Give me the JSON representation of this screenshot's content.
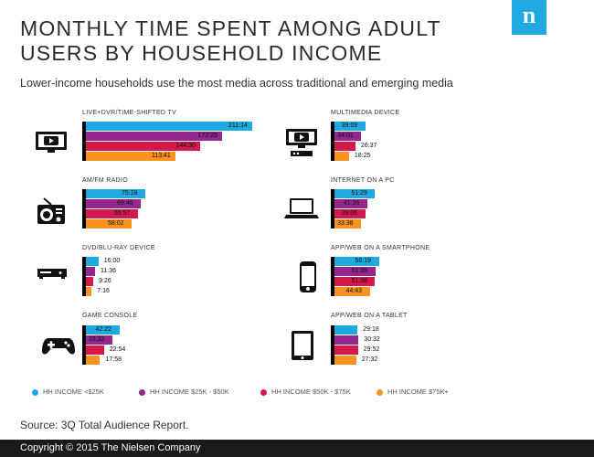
{
  "header": {
    "title": "MONTHLY TIME SPENT AMONG ADULT USERS BY HOUSEHOLD INCOME",
    "subtitle": "Lower-income households use the most media across traditional and emerging media",
    "logo_text": "n"
  },
  "colors": {
    "series": [
      "#1fa9e1",
      "#93278f",
      "#d4184b",
      "#f7931e"
    ],
    "logo": "#1fa9e1",
    "footer": "#1a1a1a"
  },
  "legend": [
    "HH INCOME <$25K",
    "HH INCOME $25K - $50K",
    "HH INCOME $50K - $75K",
    "HH INCOME $75K+"
  ],
  "chart_data": [
    {
      "type": "bar",
      "title": "LIVE+DVR/TIME-SHIFTED TV",
      "icon": "tv-icon",
      "series_names": [
        "HH INCOME <$25K",
        "HH INCOME $25K - $50K",
        "HH INCOME $50K - $75K",
        "HH INCOME $75K+"
      ],
      "labels": [
        "211:14",
        "172:25",
        "144:30",
        "113:41"
      ],
      "values": [
        211.23,
        172.42,
        144.5,
        113.68
      ],
      "units": "hours:minutes"
    },
    {
      "type": "bar",
      "title": "MULTIMEDIA DEVICE",
      "icon": "multimedia-device-icon",
      "series_names": [
        "HH INCOME <$25K",
        "HH INCOME $25K - $50K",
        "HH INCOME $50K - $75K",
        "HH INCOME $75K+"
      ],
      "labels": [
        "39:09",
        "34:01",
        "26:37",
        "18:25"
      ],
      "values": [
        39.15,
        34.02,
        26.62,
        18.42
      ],
      "units": "hours:minutes"
    },
    {
      "type": "bar",
      "title": "AM/FM RADIO",
      "icon": "radio-icon",
      "series_names": [
        "HH INCOME <$25K",
        "HH INCOME $25K - $50K",
        "HH INCOME $50K - $75K",
        "HH INCOME $75K+"
      ],
      "labels": [
        "75:28",
        "69:46",
        "65:57",
        "58:02"
      ],
      "values": [
        75.47,
        69.77,
        65.95,
        58.03
      ],
      "units": "hours:minutes"
    },
    {
      "type": "bar",
      "title": "INTERNET ON A PC",
      "icon": "laptop-icon",
      "series_names": [
        "HH INCOME <$25K",
        "HH INCOME $25K - $50K",
        "HH INCOME $50K - $75K",
        "HH INCOME $75K+"
      ],
      "labels": [
        "51:29",
        "41:36",
        "39:06",
        "33:38"
      ],
      "values": [
        51.48,
        41.6,
        39.1,
        33.63
      ],
      "units": "hours:minutes"
    },
    {
      "type": "bar",
      "title": "DVD/BLU-RAY DEVICE",
      "icon": "dvd-player-icon",
      "series_names": [
        "HH INCOME <$25K",
        "HH INCOME $25K - $50K",
        "HH INCOME $50K - $75K",
        "HH INCOME $75K+"
      ],
      "labels": [
        "16:00",
        "11:36",
        "9:26",
        "7:16"
      ],
      "values": [
        16.0,
        11.6,
        9.43,
        7.27
      ],
      "units": "hours:minutes"
    },
    {
      "type": "bar",
      "title": "APP/WEB ON A SMARTPHONE",
      "icon": "smartphone-icon",
      "series_names": [
        "HH INCOME <$25K",
        "HH INCOME $25K - $50K",
        "HH INCOME $50K - $75K",
        "HH INCOME $75K+"
      ],
      "labels": [
        "56:19",
        "51:39",
        "51:38",
        "44:43"
      ],
      "values": [
        56.32,
        51.65,
        51.63,
        44.72
      ],
      "units": "hours:minutes"
    },
    {
      "type": "bar",
      "title": "GAME CONSOLE",
      "icon": "game-controller-icon",
      "series_names": [
        "HH INCOME <$25K",
        "HH INCOME $25K - $50K",
        "HH INCOME $50K - $75K",
        "HH INCOME $75K+"
      ],
      "labels": [
        "42:22",
        "33:33",
        "22:54",
        "17:58"
      ],
      "values": [
        42.37,
        33.55,
        22.9,
        17.97
      ],
      "units": "hours:minutes"
    },
    {
      "type": "bar",
      "title": "APP/WEB ON A TABLET",
      "icon": "tablet-icon",
      "series_names": [
        "HH INCOME <$25K",
        "HH INCOME $25K - $50K",
        "HH INCOME $50K - $75K",
        "HH INCOME $75K+"
      ],
      "labels": [
        "29:18",
        "30:32",
        "29:52",
        "27:32"
      ],
      "values": [
        29.3,
        30.53,
        29.87,
        27.53
      ],
      "units": "hours:minutes"
    }
  ],
  "source": "Source: 3Q Total Audience Report.",
  "copyright": "Copyright © 2015 The Nielsen Company"
}
